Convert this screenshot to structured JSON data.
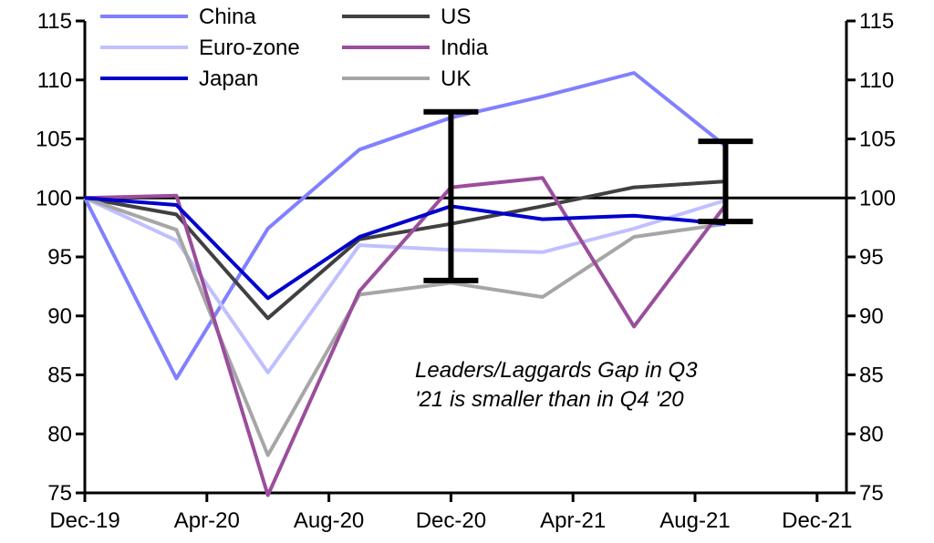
{
  "chart_data": {
    "type": "line",
    "title": "",
    "xlabel": "",
    "ylabel": "",
    "ylim": [
      75,
      115
    ],
    "y_ticks": [
      75,
      80,
      85,
      90,
      95,
      100,
      105,
      110,
      115
    ],
    "secondary_y_axis": true,
    "grid": false,
    "legend_position": "top-left",
    "x_tick_labels": [
      "Dec-19",
      "Apr-20",
      "Aug-20",
      "Dec-20",
      "Apr-21",
      "Aug-21",
      "Dec-21"
    ],
    "x_tick_months": [
      0,
      4,
      8,
      12,
      16,
      20,
      24
    ],
    "x": [
      "Dec-19",
      "Mar-20",
      "Jun-20",
      "Sep-20",
      "Dec-20",
      "Mar-21",
      "Jun-21",
      "Sep-21"
    ],
    "x_months": [
      0,
      3,
      6,
      9,
      12,
      15,
      18,
      21
    ],
    "reference_line": 100,
    "series": [
      {
        "name": "China",
        "color": "#8080ff",
        "values": [
          100,
          84.7,
          97.4,
          104.1,
          106.8,
          108.6,
          110.6,
          104.4
        ]
      },
      {
        "name": "US",
        "color": "#404040",
        "values": [
          100,
          98.6,
          89.8,
          96.5,
          97.8,
          99.3,
          100.9,
          101.4
        ]
      },
      {
        "name": "Euro-zone",
        "color": "#c0c0ff",
        "values": [
          100,
          96.4,
          85.2,
          96.0,
          95.6,
          95.4,
          97.4,
          99.8
        ]
      },
      {
        "name": "India",
        "color": "#9a4e9c",
        "values": [
          100,
          100.2,
          74.8,
          92.1,
          100.9,
          101.7,
          89.1,
          99.4
        ]
      },
      {
        "name": "Japan",
        "color": "#0000cc",
        "values": [
          100,
          99.4,
          91.5,
          96.7,
          99.3,
          98.2,
          98.5,
          97.8
        ]
      },
      {
        "name": "UK",
        "color": "#a6a6a6",
        "values": [
          100,
          97.3,
          78.2,
          91.8,
          92.8,
          91.6,
          96.7,
          97.8
        ]
      }
    ],
    "error_bars": [
      {
        "x_month": 12,
        "low": 93.0,
        "high": 107.3
      },
      {
        "x_month": 21,
        "low": 98.0,
        "high": 104.8
      }
    ],
    "annotation": {
      "line1": "Leaders/Laggards Gap in Q3",
      "line2": "'21 is smaller than in Q4 '20"
    }
  }
}
